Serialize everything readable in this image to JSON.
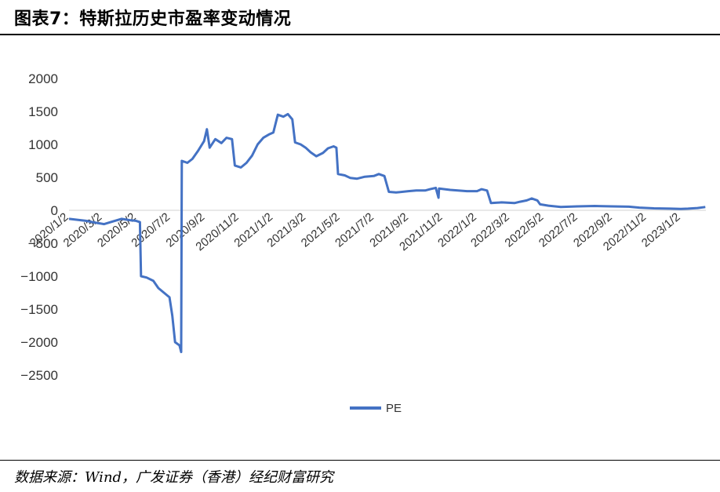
{
  "header": {
    "title": "图表7：特斯拉历史市盈率变动情况"
  },
  "footer": {
    "source": "数据来源：Wind，广发证券（香港）经纪财富研究"
  },
  "chart_data": {
    "type": "line",
    "title": "",
    "xlabel": "",
    "ylabel": "",
    "ylim": [
      -2500,
      2000
    ],
    "yticks": [
      2000,
      1500,
      1000,
      500,
      0,
      -500,
      -1000,
      -1500,
      -2000,
      -2500
    ],
    "xticks": [
      "2020/1/2",
      "2020/3/2",
      "2020/5/2",
      "2020/7/2",
      "2020/9/2",
      "2020/11/2",
      "2021/1/2",
      "2021/3/2",
      "2021/5/2",
      "2021/7/2",
      "2021/9/2",
      "2021/11/2",
      "2022/1/2",
      "2022/3/2",
      "2022/5/2",
      "2022/7/2",
      "2022/9/2",
      "2022/11/2",
      "2023/1/2"
    ],
    "legend": {
      "position": "bottom-center",
      "color": "#4472C4"
    },
    "series": [
      {
        "name": "PE",
        "color": "#4472C4",
        "points": [
          [
            "2020/1/2",
            -130
          ],
          [
            "2020/2/1",
            -160
          ],
          [
            "2020/2/20",
            -190
          ],
          [
            "2020/3/5",
            -210
          ],
          [
            "2020/3/20",
            -170
          ],
          [
            "2020/4/5",
            -130
          ],
          [
            "2020/4/20",
            -150
          ],
          [
            "2020/5/1",
            -160
          ],
          [
            "2020/5/8",
            -180
          ],
          [
            "2020/5/10",
            -1000
          ],
          [
            "2020/5/20",
            -1020
          ],
          [
            "2020/6/1",
            -1070
          ],
          [
            "2020/6/10",
            -1180
          ],
          [
            "2020/6/20",
            -1250
          ],
          [
            "2020/6/30",
            -1320
          ],
          [
            "2020/7/5",
            -1600
          ],
          [
            "2020/7/10",
            -2000
          ],
          [
            "2020/7/18",
            -2050
          ],
          [
            "2020/7/21",
            -2150
          ],
          [
            "2020/7/22",
            750
          ],
          [
            "2020/8/1",
            720
          ],
          [
            "2020/8/10",
            780
          ],
          [
            "2020/8/20",
            900
          ],
          [
            "2020/8/31",
            1050
          ],
          [
            "2020/9/5",
            1230
          ],
          [
            "2020/9/10",
            950
          ],
          [
            "2020/9/20",
            1080
          ],
          [
            "2020/10/1",
            1020
          ],
          [
            "2020/10/10",
            1100
          ],
          [
            "2020/10/20",
            1080
          ],
          [
            "2020/10/25",
            680
          ],
          [
            "2020/11/5",
            650
          ],
          [
            "2020/11/15",
            720
          ],
          [
            "2020/11/25",
            830
          ],
          [
            "2020/12/5",
            1000
          ],
          [
            "2020/12/15",
            1100
          ],
          [
            "2020/12/25",
            1150
          ],
          [
            "2021/1/2",
            1180
          ],
          [
            "2021/1/10",
            1450
          ],
          [
            "2021/1/20",
            1420
          ],
          [
            "2021/1/28",
            1460
          ],
          [
            "2021/2/5",
            1380
          ],
          [
            "2021/2/10",
            1030
          ],
          [
            "2021/2/20",
            1000
          ],
          [
            "2021/3/1",
            950
          ],
          [
            "2021/3/10",
            880
          ],
          [
            "2021/3/20",
            820
          ],
          [
            "2021/4/1",
            870
          ],
          [
            "2021/4/10",
            940
          ],
          [
            "2021/4/20",
            970
          ],
          [
            "2021/4/25",
            950
          ],
          [
            "2021/4/28",
            550
          ],
          [
            "2021/5/10",
            530
          ],
          [
            "2021/5/20",
            490
          ],
          [
            "2021/6/1",
            480
          ],
          [
            "2021/6/15",
            510
          ],
          [
            "2021/7/1",
            520
          ],
          [
            "2021/7/10",
            550
          ],
          [
            "2021/7/20",
            520
          ],
          [
            "2021/7/28",
            280
          ],
          [
            "2021/8/10",
            270
          ],
          [
            "2021/9/1",
            290
          ],
          [
            "2021/9/15",
            300
          ],
          [
            "2021/10/1",
            300
          ],
          [
            "2021/10/10",
            320
          ],
          [
            "2021/10/20",
            340
          ],
          [
            "2021/10/25",
            190
          ],
          [
            "2021/10/26",
            330
          ],
          [
            "2021/11/15",
            310
          ],
          [
            "2021/12/15",
            290
          ],
          [
            "2022/1/2",
            290
          ],
          [
            "2022/1/10",
            320
          ],
          [
            "2022/1/20",
            300
          ],
          [
            "2022/1/27",
            110
          ],
          [
            "2022/2/15",
            120
          ],
          [
            "2022/3/10",
            110
          ],
          [
            "2022/3/20",
            130
          ],
          [
            "2022/4/1",
            150
          ],
          [
            "2022/4/10",
            180
          ],
          [
            "2022/4/20",
            150
          ],
          [
            "2022/4/25",
            90
          ],
          [
            "2022/5/10",
            70
          ],
          [
            "2022/6/1",
            50
          ],
          [
            "2022/7/1",
            60
          ],
          [
            "2022/8/1",
            65
          ],
          [
            "2022/9/1",
            60
          ],
          [
            "2022/10/1",
            55
          ],
          [
            "2022/10/20",
            40
          ],
          [
            "2022/11/15",
            30
          ],
          [
            "2022/12/15",
            25
          ],
          [
            "2023/1/2",
            20
          ],
          [
            "2023/1/15",
            25
          ],
          [
            "2023/2/1",
            35
          ],
          [
            "2023/2/15",
            50
          ]
        ]
      }
    ]
  }
}
